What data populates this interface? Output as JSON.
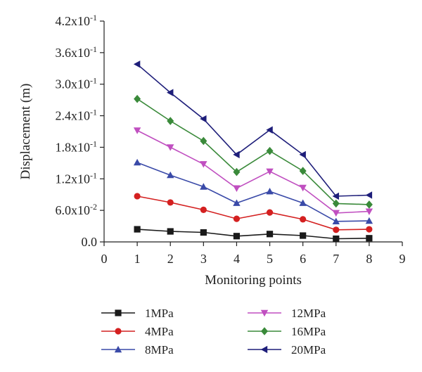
{
  "chart_data": {
    "type": "line",
    "title": "",
    "xlabel": "Monitoring points",
    "ylabel": "Displacement (m)",
    "xlim": [
      0,
      9
    ],
    "ylim": [
      0,
      0.42
    ],
    "x_ticks": [
      0,
      1,
      2,
      3,
      4,
      5,
      6,
      7,
      8,
      9
    ],
    "x_tick_labels": [
      "0",
      "1",
      "2",
      "3",
      "4",
      "5",
      "6",
      "7",
      "8",
      "9"
    ],
    "y_ticks": [
      0,
      0.06,
      0.12,
      0.18,
      0.24,
      0.3,
      0.36,
      0.42
    ],
    "y_tick_labels": [
      {
        "mantissa": "0.0",
        "exp": ""
      },
      {
        "mantissa": "6.0x10",
        "exp": "-2"
      },
      {
        "mantissa": "1.2x10",
        "exp": "-1"
      },
      {
        "mantissa": "1.8x10",
        "exp": "-1"
      },
      {
        "mantissa": "2.4x10",
        "exp": "-1"
      },
      {
        "mantissa": "3.0x10",
        "exp": "-1"
      },
      {
        "mantissa": "3.6x10",
        "exp": "-1"
      },
      {
        "mantissa": "4.2x10",
        "exp": "-1"
      }
    ],
    "grid": false,
    "legend_position": "bottom",
    "x": [
      1,
      2,
      3,
      4,
      5,
      6,
      7,
      8
    ],
    "series": [
      {
        "name": "1MPa",
        "color": "#1a1a1a",
        "marker": "square",
        "values": [
          0.024,
          0.02,
          0.018,
          0.011,
          0.015,
          0.012,
          0.006,
          0.007
        ]
      },
      {
        "name": "4MPa",
        "color": "#d42020",
        "marker": "circle",
        "values": [
          0.087,
          0.075,
          0.061,
          0.044,
          0.056,
          0.043,
          0.023,
          0.024
        ]
      },
      {
        "name": "8MPa",
        "color": "#3a4aa8",
        "marker": "triangle-up",
        "values": [
          0.151,
          0.127,
          0.105,
          0.074,
          0.096,
          0.074,
          0.039,
          0.04
        ]
      },
      {
        "name": "12MPa",
        "color": "#c04fc0",
        "marker": "triangle-down",
        "values": [
          0.212,
          0.18,
          0.148,
          0.102,
          0.134,
          0.103,
          0.055,
          0.058
        ]
      },
      {
        "name": "16MPa",
        "color": "#3a8a3a",
        "marker": "diamond",
        "values": [
          0.272,
          0.23,
          0.192,
          0.133,
          0.173,
          0.135,
          0.073,
          0.071
        ]
      },
      {
        "name": "20MPa",
        "color": "#1e1e7a",
        "marker": "triangle-left",
        "values": [
          0.338,
          0.284,
          0.234,
          0.166,
          0.213,
          0.166,
          0.087,
          0.089
        ]
      }
    ]
  }
}
